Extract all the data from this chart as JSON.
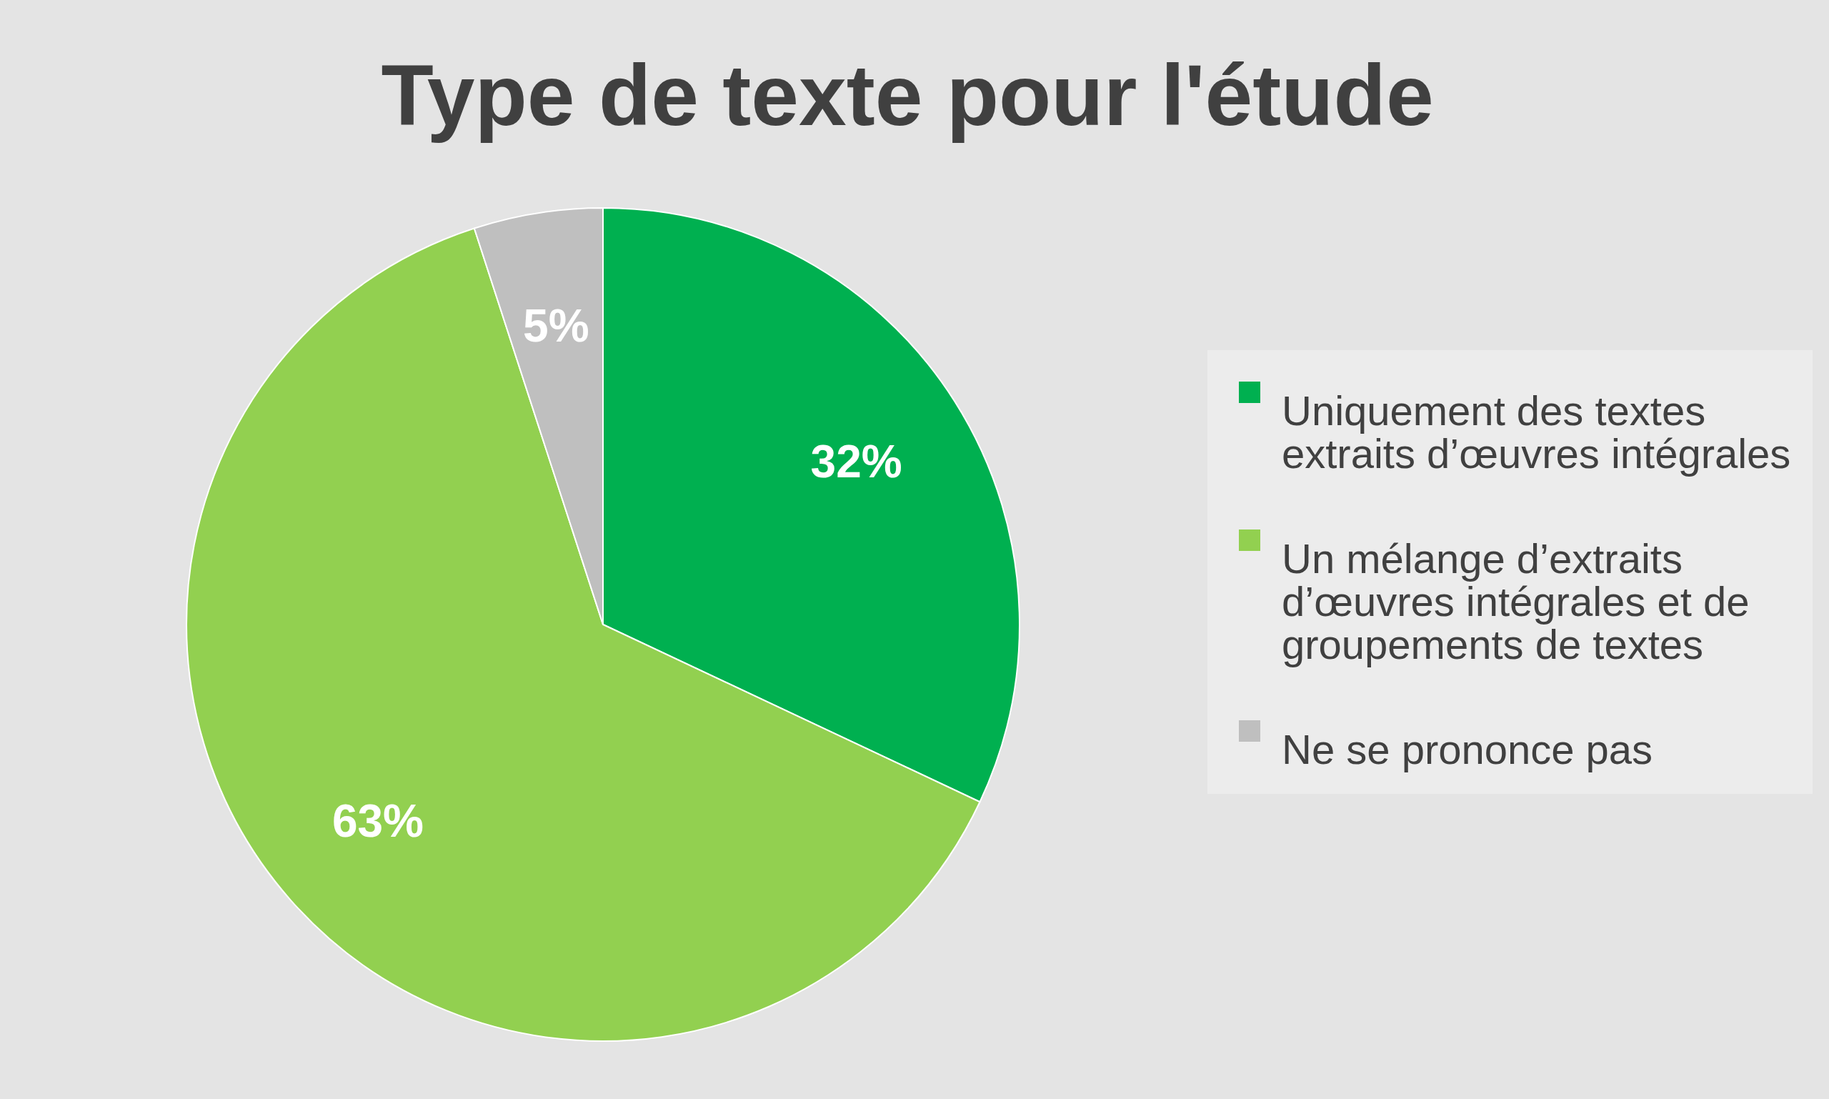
{
  "chart_data": {
    "type": "pie",
    "title": "Type de texte pour l'étude",
    "categories": [
      "Uniquement des textes extraits d’œuvres intégrales",
      "Un mélange d’extraits d’œuvres intégrales et de groupements de textes",
      "Ne se prononce pas"
    ],
    "values": [
      32,
      63,
      5
    ],
    "colors": [
      "#00b050",
      "#92d050",
      "#bfbfbf"
    ],
    "value_labels": [
      "32%",
      "63%",
      "5%"
    ],
    "legend": "right"
  }
}
